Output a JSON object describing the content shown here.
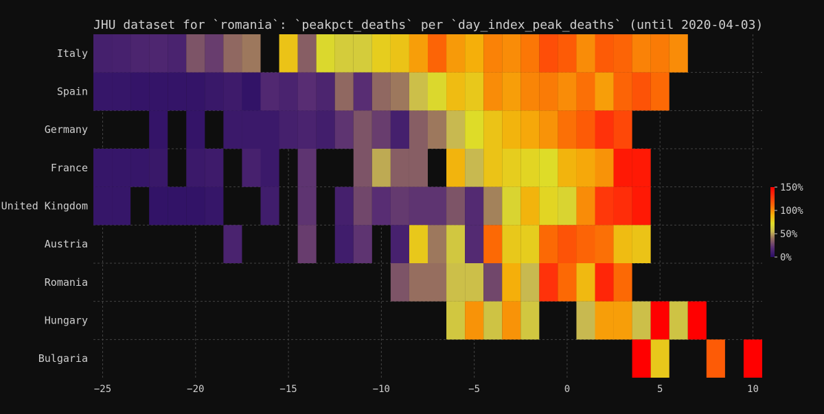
{
  "chart_data": {
    "type": "heatmap",
    "title": "JHU dataset for `romania`: `peakpct_deaths` per `day_index_peak_deaths` (until 2020-04-03)",
    "xlabel": "",
    "ylabel": "",
    "x_range": [
      -25.5,
      10.5
    ],
    "x_ticks": [
      -25,
      -20,
      -15,
      -10,
      -5,
      0,
      5,
      10
    ],
    "grid": true,
    "countries": [
      "Italy",
      "Spain",
      "Germany",
      "France",
      "United Kingdom",
      "Austria",
      "Romania",
      "Hungary",
      "Bulgaria"
    ],
    "value_unit": "%",
    "color_scale": {
      "min": 0,
      "max": 150,
      "ticks": [
        0,
        50,
        100,
        150
      ],
      "tick_labels": [
        "0%",
        "50%",
        "100%",
        "150%"
      ],
      "colormap": "plasma-like (purple → yellow → orange → red)"
    },
    "cells": {
      "Italy": [
        [
          -25,
          12
        ],
        [
          -24,
          13
        ],
        [
          -23,
          15
        ],
        [
          -22,
          16
        ],
        [
          -21,
          14
        ],
        [
          -20,
          32
        ],
        [
          -19,
          25
        ],
        [
          -18,
          38
        ],
        [
          -17,
          42
        ],
        [
          -15,
          82
        ],
        [
          -14,
          35
        ],
        [
          -13,
          70
        ],
        [
          -12,
          64
        ],
        [
          -11,
          64
        ],
        [
          -10,
          78
        ],
        [
          -9,
          82
        ],
        [
          -8,
          95
        ],
        [
          -7,
          112
        ],
        [
          -6,
          96
        ],
        [
          -5,
          90
        ],
        [
          -4,
          103
        ],
        [
          -3,
          100
        ],
        [
          -2,
          106
        ],
        [
          -1,
          120
        ],
        [
          0,
          115
        ],
        [
          1,
          100
        ],
        [
          2,
          115
        ],
        [
          3,
          112
        ],
        [
          4,
          103
        ],
        [
          5,
          105
        ],
        [
          6,
          100
        ]
      ],
      "Spain": [
        [
          -25,
          6
        ],
        [
          -24,
          6
        ],
        [
          -23,
          5
        ],
        [
          -22,
          5
        ],
        [
          -21,
          5
        ],
        [
          -20,
          5
        ],
        [
          -19,
          7
        ],
        [
          -18,
          9
        ],
        [
          -17,
          4
        ],
        [
          -16,
          17
        ],
        [
          -15,
          14
        ],
        [
          -14,
          20
        ],
        [
          -13,
          15
        ],
        [
          -12,
          38
        ],
        [
          -11,
          20
        ],
        [
          -10,
          38
        ],
        [
          -9,
          42
        ],
        [
          -8,
          58
        ],
        [
          -7,
          70
        ],
        [
          -6,
          85
        ],
        [
          -5,
          80
        ],
        [
          -4,
          100
        ],
        [
          -3,
          95
        ],
        [
          -2,
          102
        ],
        [
          -1,
          105
        ],
        [
          0,
          100
        ],
        [
          1,
          108
        ],
        [
          2,
          95
        ],
        [
          3,
          112
        ],
        [
          4,
          118
        ],
        [
          5,
          110
        ]
      ],
      "Germany": [
        [
          -22,
          5
        ],
        [
          -20,
          5
        ],
        [
          -18,
          8
        ],
        [
          -17,
          8
        ],
        [
          -16,
          8
        ],
        [
          -15,
          12
        ],
        [
          -14,
          14
        ],
        [
          -13,
          11
        ],
        [
          -12,
          22
        ],
        [
          -11,
          32
        ],
        [
          -10,
          25
        ],
        [
          -9,
          12
        ],
        [
          -8,
          35
        ],
        [
          -7,
          42
        ],
        [
          -6,
          55
        ],
        [
          -5,
          72
        ],
        [
          -4,
          82
        ],
        [
          -3,
          88
        ],
        [
          -2,
          92
        ],
        [
          -1,
          98
        ],
        [
          0,
          108
        ],
        [
          1,
          115
        ],
        [
          2,
          130
        ],
        [
          3,
          122
        ]
      ],
      "France": [
        [
          -25,
          6
        ],
        [
          -24,
          6
        ],
        [
          -23,
          6
        ],
        [
          -22,
          7
        ],
        [
          -20,
          8
        ],
        [
          -19,
          9
        ],
        [
          -17,
          13
        ],
        [
          -16,
          8
        ],
        [
          -14,
          22
        ],
        [
          -11,
          32
        ],
        [
          -10,
          52
        ],
        [
          -9,
          35
        ],
        [
          -8,
          35
        ],
        [
          -6,
          88
        ],
        [
          -5,
          55
        ],
        [
          -4,
          82
        ],
        [
          -3,
          78
        ],
        [
          -2,
          75
        ],
        [
          -1,
          72
        ],
        [
          0,
          88
        ],
        [
          1,
          92
        ],
        [
          2,
          98
        ],
        [
          3,
          140
        ],
        [
          4,
          140
        ]
      ],
      "United Kingdom": [
        [
          -25,
          6
        ],
        [
          -24,
          6
        ],
        [
          -22,
          4
        ],
        [
          -21,
          4
        ],
        [
          -20,
          4
        ],
        [
          -19,
          6
        ],
        [
          -16,
          10
        ],
        [
          -14,
          22
        ],
        [
          -12,
          12
        ],
        [
          -11,
          28
        ],
        [
          -10,
          20
        ],
        [
          -9,
          24
        ],
        [
          -8,
          22
        ],
        [
          -7,
          22
        ],
        [
          -6,
          32
        ],
        [
          -5,
          18
        ],
        [
          -4,
          44
        ],
        [
          -3,
          68
        ],
        [
          -2,
          88
        ],
        [
          -1,
          75
        ],
        [
          0,
          68
        ],
        [
          1,
          100
        ],
        [
          2,
          128
        ],
        [
          3,
          132
        ],
        [
          4,
          140
        ]
      ],
      "Austria": [
        [
          -18,
          14
        ],
        [
          -14,
          25
        ],
        [
          -12,
          10
        ],
        [
          -11,
          22
        ],
        [
          -9,
          13
        ],
        [
          -8,
          80
        ],
        [
          -7,
          42
        ],
        [
          -6,
          62
        ],
        [
          -5,
          18
        ],
        [
          -4,
          110
        ],
        [
          -3,
          80
        ],
        [
          -2,
          78
        ],
        [
          -1,
          110
        ],
        [
          0,
          118
        ],
        [
          1,
          112
        ],
        [
          2,
          108
        ],
        [
          3,
          85
        ],
        [
          4,
          82
        ]
      ],
      "Romania": [
        [
          -9,
          32
        ],
        [
          -8,
          40
        ],
        [
          -7,
          40
        ],
        [
          -6,
          58
        ],
        [
          -5,
          58
        ],
        [
          -4,
          28
        ],
        [
          -3,
          90
        ],
        [
          -2,
          55
        ],
        [
          -1,
          130
        ],
        [
          0,
          110
        ],
        [
          1,
          86
        ],
        [
          2,
          135
        ],
        [
          3,
          110
        ]
      ],
      "Hungary": [
        [
          -6,
          62
        ],
        [
          -5,
          98
        ],
        [
          -4,
          60
        ],
        [
          -3,
          98
        ],
        [
          -2,
          62
        ],
        [
          1,
          55
        ],
        [
          2,
          95
        ],
        [
          3,
          95
        ],
        [
          4,
          58
        ],
        [
          5,
          150
        ],
        [
          6,
          60
        ],
        [
          7,
          150
        ]
      ],
      "Bulgaria": [
        [
          4,
          150
        ],
        [
          5,
          80
        ],
        [
          8,
          115
        ],
        [
          10,
          150
        ]
      ]
    }
  }
}
